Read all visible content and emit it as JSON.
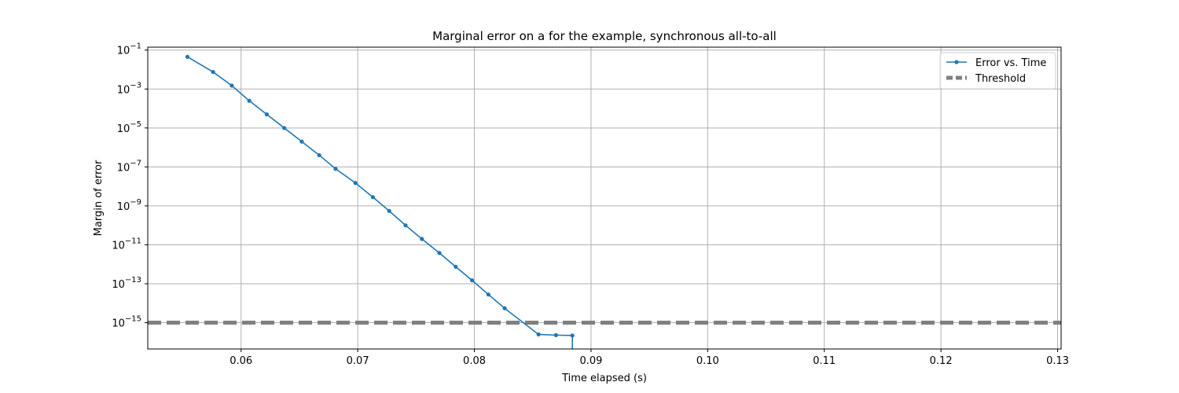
{
  "chart_data": {
    "type": "line",
    "title": "Marginal error on a for the example, synchronous all-to-all",
    "xlabel": "Time elapsed (s)",
    "ylabel": "Margin of error",
    "yscale": "log",
    "xlim": [
      0.052,
      0.1303
    ],
    "ylim_exponent": [
      -16.35,
      -0.85
    ],
    "grid": true,
    "legend_position": "top-right",
    "x_ticks": [
      "0.06",
      "0.07",
      "0.08",
      "0.09",
      "0.10",
      "0.11",
      "0.12",
      "0.13"
    ],
    "x_tick_values": [
      0.06,
      0.07,
      0.08,
      0.09,
      0.1,
      0.11,
      0.12,
      0.13
    ],
    "y_tick_exponents": [
      "-1",
      "-3",
      "-5",
      "-7",
      "-9",
      "-11",
      "-13",
      "-15"
    ],
    "series": [
      {
        "name": "Error vs. Time",
        "color": "#1f77b4",
        "marker": "dot",
        "x": [
          0.0554,
          0.0576,
          0.0592,
          0.0607,
          0.0622,
          0.0637,
          0.0652,
          0.0667,
          0.0681,
          0.0698,
          0.0713,
          0.0727,
          0.0741,
          0.0755,
          0.077,
          0.0784,
          0.0798,
          0.0812,
          0.0826,
          0.0855,
          0.087,
          0.0884
        ],
        "y": [
          0.045,
          0.0075,
          0.0015,
          0.00025,
          5e-05,
          1e-05,
          2e-06,
          4e-07,
          8e-08,
          1.5e-08,
          2.8e-09,
          5.5e-10,
          1e-10,
          2e-11,
          3.8e-12,
          7.5e-13,
          1.5e-13,
          2.8e-14,
          5.5e-15,
          2.5e-16,
          2.3e-16,
          2.2e-16
        ],
        "tail_drop": true
      },
      {
        "name": "Threshold",
        "color": "#808080",
        "style": "dashed",
        "y_constant": 1e-15
      }
    ]
  }
}
